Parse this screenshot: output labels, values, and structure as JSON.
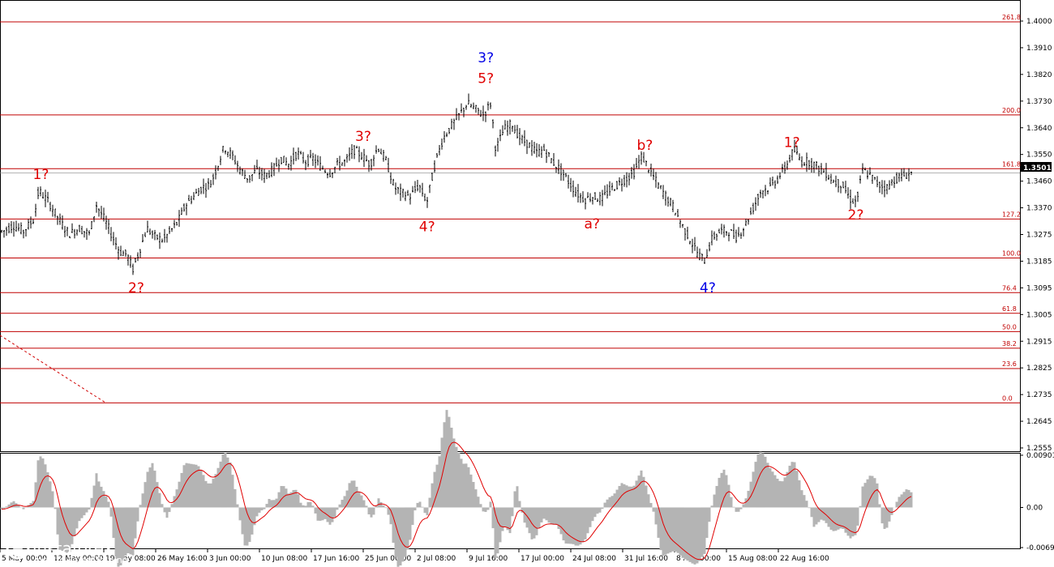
{
  "chart_data": {
    "type": "candlestick",
    "instrument_last_price": "1.3501",
    "price_axis": {
      "range": [
        1.2555,
        1.4045
      ],
      "ticks": [
        "1.4000",
        "1.3910",
        "1.3820",
        "1.3730",
        "1.3640",
        "1.3550",
        "1.3460",
        "1.3370",
        "1.3275",
        "1.3185",
        "1.3095",
        "1.3005",
        "1.2915",
        "1.2825",
        "1.2735",
        "1.2645",
        "1.2555"
      ]
    },
    "time_axis": {
      "ticks": [
        "5 May 00:00",
        "12 May 00:00",
        "19 May 08:00",
        "26 May 16:00",
        "3 Jun 00:00",
        "10 Jun 08:00",
        "17 Jun 16:00",
        "25 Jun 00:00",
        "2 Jul 08:00",
        "9 Jul 16:00",
        "17 Jul 00:00",
        "24 Jul 08:00",
        "31 Jul 16:00",
        "8 Aug 00:00",
        "15 Aug 08:00",
        "22 Aug 16:00"
      ]
    },
    "fib_levels": [
      {
        "label": "261.8",
        "price": 1.402
      },
      {
        "label": "200.0",
        "price": 1.37
      },
      {
        "label": "161.8",
        "price": 1.3515
      },
      {
        "label": "127.2",
        "price": 1.3342
      },
      {
        "label": "100.0",
        "price": 1.3208
      },
      {
        "label": "76.4",
        "price": 1.3089
      },
      {
        "label": "61.8",
        "price": 1.3018
      },
      {
        "label": "50.0",
        "price": 1.2955
      },
      {
        "label": "38.2",
        "price": 1.2898
      },
      {
        "label": "23.6",
        "price": 1.2828
      },
      {
        "label": "0.0",
        "price": 1.271
      }
    ],
    "wave_labels": [
      {
        "text": "1?",
        "color": "red",
        "price": 1.348,
        "time_index": 0.034
      },
      {
        "text": "2?",
        "color": "red",
        "price": 1.309,
        "time_index": 0.128
      },
      {
        "text": "3?",
        "color": "red",
        "price": 1.361,
        "time_index": 0.352
      },
      {
        "text": "4?",
        "color": "red",
        "price": 1.33,
        "time_index": 0.415
      },
      {
        "text": "3?",
        "color": "blue",
        "price": 1.388,
        "time_index": 0.473
      },
      {
        "text": "5?",
        "color": "red",
        "price": 1.381,
        "time_index": 0.473
      },
      {
        "text": "b?",
        "color": "red",
        "price": 1.358,
        "time_index": 0.63
      },
      {
        "text": "a?",
        "color": "red",
        "price": 1.331,
        "time_index": 0.578
      },
      {
        "text": "4?",
        "color": "blue",
        "price": 1.309,
        "time_index": 0.692
      },
      {
        "text": "1?",
        "color": "red",
        "price": 1.359,
        "time_index": 0.775
      },
      {
        "text": "2?",
        "color": "red",
        "price": 1.334,
        "time_index": 0.838
      }
    ],
    "price_series": [
      [
        0,
        1.33
      ],
      [
        0.01,
        1.332
      ],
      [
        0.02,
        1.33
      ],
      [
        0.03,
        1.334
      ],
      [
        0.035,
        1.344
      ],
      [
        0.045,
        1.34
      ],
      [
        0.055,
        1.334
      ],
      [
        0.065,
        1.329
      ],
      [
        0.075,
        1.331
      ],
      [
        0.085,
        1.329
      ],
      [
        0.092,
        1.339
      ],
      [
        0.1,
        1.334
      ],
      [
        0.108,
        1.328
      ],
      [
        0.115,
        1.323
      ],
      [
        0.122,
        1.322
      ],
      [
        0.128,
        1.317
      ],
      [
        0.135,
        1.324
      ],
      [
        0.142,
        1.331
      ],
      [
        0.15,
        1.328
      ],
      [
        0.158,
        1.327
      ],
      [
        0.165,
        1.33
      ],
      [
        0.172,
        1.333
      ],
      [
        0.18,
        1.339
      ],
      [
        0.188,
        1.342
      ],
      [
        0.196,
        1.345
      ],
      [
        0.204,
        1.346
      ],
      [
        0.21,
        1.351
      ],
      [
        0.218,
        1.359
      ],
      [
        0.226,
        1.356
      ],
      [
        0.234,
        1.351
      ],
      [
        0.242,
        1.348
      ],
      [
        0.25,
        1.351
      ],
      [
        0.258,
        1.349
      ],
      [
        0.266,
        1.351
      ],
      [
        0.274,
        1.355
      ],
      [
        0.282,
        1.353
      ],
      [
        0.29,
        1.357
      ],
      [
        0.298,
        1.354
      ],
      [
        0.306,
        1.355
      ],
      [
        0.314,
        1.352
      ],
      [
        0.322,
        1.35
      ],
      [
        0.33,
        1.353
      ],
      [
        0.338,
        1.354
      ],
      [
        0.346,
        1.358
      ],
      [
        0.354,
        1.356
      ],
      [
        0.362,
        1.353
      ],
      [
        0.37,
        1.359
      ],
      [
        0.378,
        1.354
      ],
      [
        0.386,
        1.345
      ],
      [
        0.394,
        1.343
      ],
      [
        0.402,
        1.342
      ],
      [
        0.41,
        1.346
      ],
      [
        0.418,
        1.34
      ],
      [
        0.426,
        1.353
      ],
      [
        0.434,
        1.362
      ],
      [
        0.442,
        1.366
      ],
      [
        0.45,
        1.37
      ],
      [
        0.458,
        1.374
      ],
      [
        0.466,
        1.372
      ],
      [
        0.474,
        1.37
      ],
      [
        0.481,
        1.374
      ],
      [
        0.486,
        1.358
      ],
      [
        0.494,
        1.365
      ],
      [
        0.502,
        1.367
      ],
      [
        0.51,
        1.362
      ],
      [
        0.518,
        1.36
      ],
      [
        0.526,
        1.357
      ],
      [
        0.534,
        1.358
      ],
      [
        0.542,
        1.354
      ],
      [
        0.55,
        1.351
      ],
      [
        0.558,
        1.347
      ],
      [
        0.566,
        1.343
      ],
      [
        0.574,
        1.341
      ],
      [
        0.582,
        1.342
      ],
      [
        0.59,
        1.341
      ],
      [
        0.598,
        1.344
      ],
      [
        0.606,
        1.346
      ],
      [
        0.614,
        1.348
      ],
      [
        0.622,
        1.35
      ],
      [
        0.63,
        1.356
      ],
      [
        0.638,
        1.351
      ],
      [
        0.646,
        1.346
      ],
      [
        0.654,
        1.342
      ],
      [
        0.662,
        1.338
      ],
      [
        0.67,
        1.332
      ],
      [
        0.678,
        1.327
      ],
      [
        0.686,
        1.322
      ],
      [
        0.692,
        1.32
      ],
      [
        0.7,
        1.328
      ],
      [
        0.708,
        1.33
      ],
      [
        0.716,
        1.33
      ],
      [
        0.724,
        1.328
      ],
      [
        0.732,
        1.332
      ],
      [
        0.74,
        1.338
      ],
      [
        0.748,
        1.344
      ],
      [
        0.756,
        1.345
      ],
      [
        0.764,
        1.348
      ],
      [
        0.772,
        1.352
      ],
      [
        0.78,
        1.358
      ],
      [
        0.788,
        1.354
      ],
      [
        0.796,
        1.354
      ],
      [
        0.804,
        1.352
      ],
      [
        0.812,
        1.35
      ],
      [
        0.82,
        1.347
      ],
      [
        0.828,
        1.346
      ],
      [
        0.836,
        1.341
      ],
      [
        0.842,
        1.34
      ],
      [
        0.848,
        1.351
      ],
      [
        0.856,
        1.349
      ],
      [
        0.864,
        1.346
      ],
      [
        0.872,
        1.345
      ],
      [
        0.88,
        1.348
      ],
      [
        0.888,
        1.349
      ],
      [
        0.896,
        1.3501
      ]
    ],
    "oscillator": {
      "axis_ticks": [
        "0.00901",
        "0.00",
        "-0.00692"
      ],
      "range": [
        -0.00692,
        0.00901
      ]
    }
  },
  "branding": {
    "logo_text": "instaforex",
    "logo_sub": "Instant Forex Trading"
  }
}
